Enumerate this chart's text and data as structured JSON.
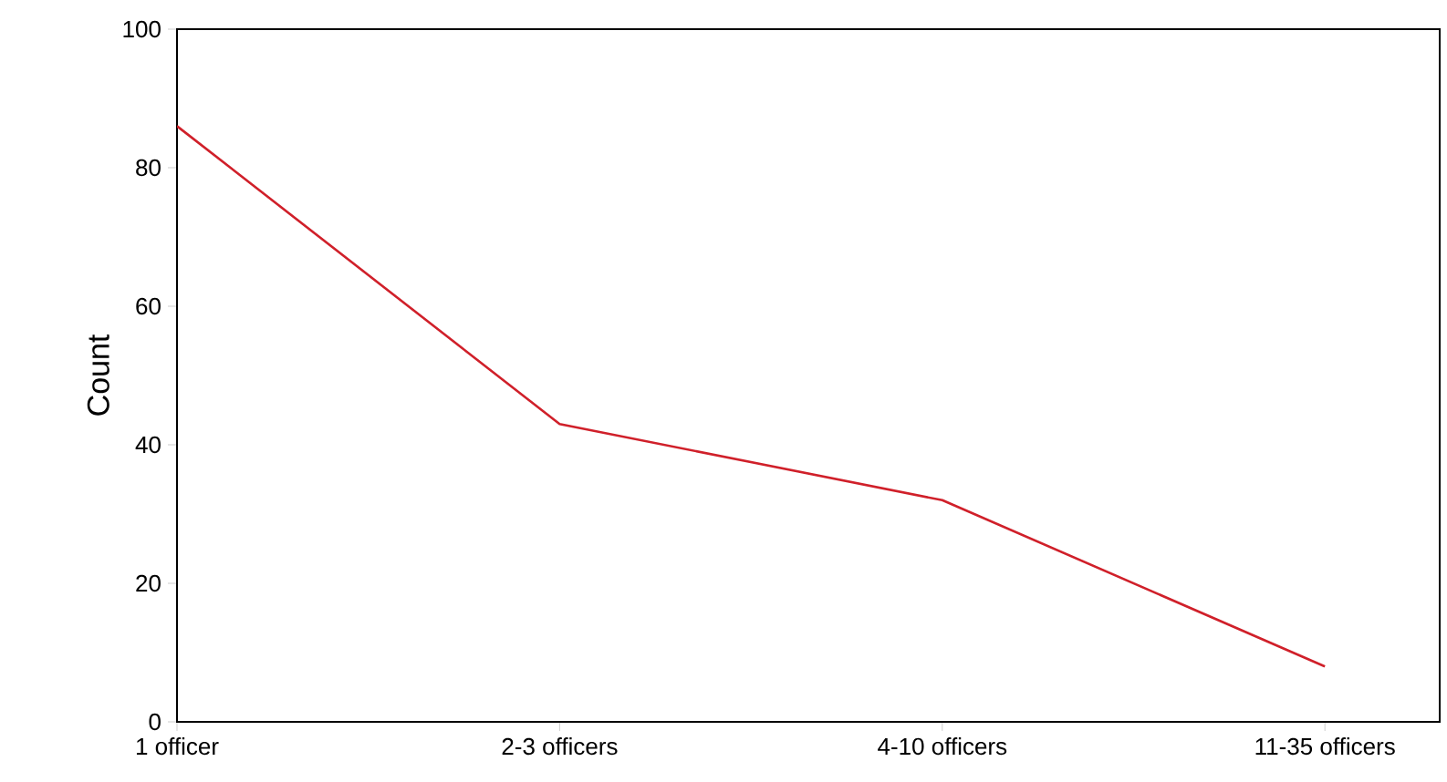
{
  "chart_data": {
    "type": "line",
    "ylabel": "Count",
    "categories": [
      "1 officer",
      "2-3 officers",
      "4-10 officers",
      "11-35 officers"
    ],
    "values": [
      86,
      43,
      32,
      8
    ],
    "color": "#d0202a",
    "ylim": [
      0,
      100
    ],
    "yticks": [
      0,
      20,
      40,
      60,
      80,
      100
    ],
    "grid": false,
    "marker": "none",
    "line_style": "solid"
  }
}
